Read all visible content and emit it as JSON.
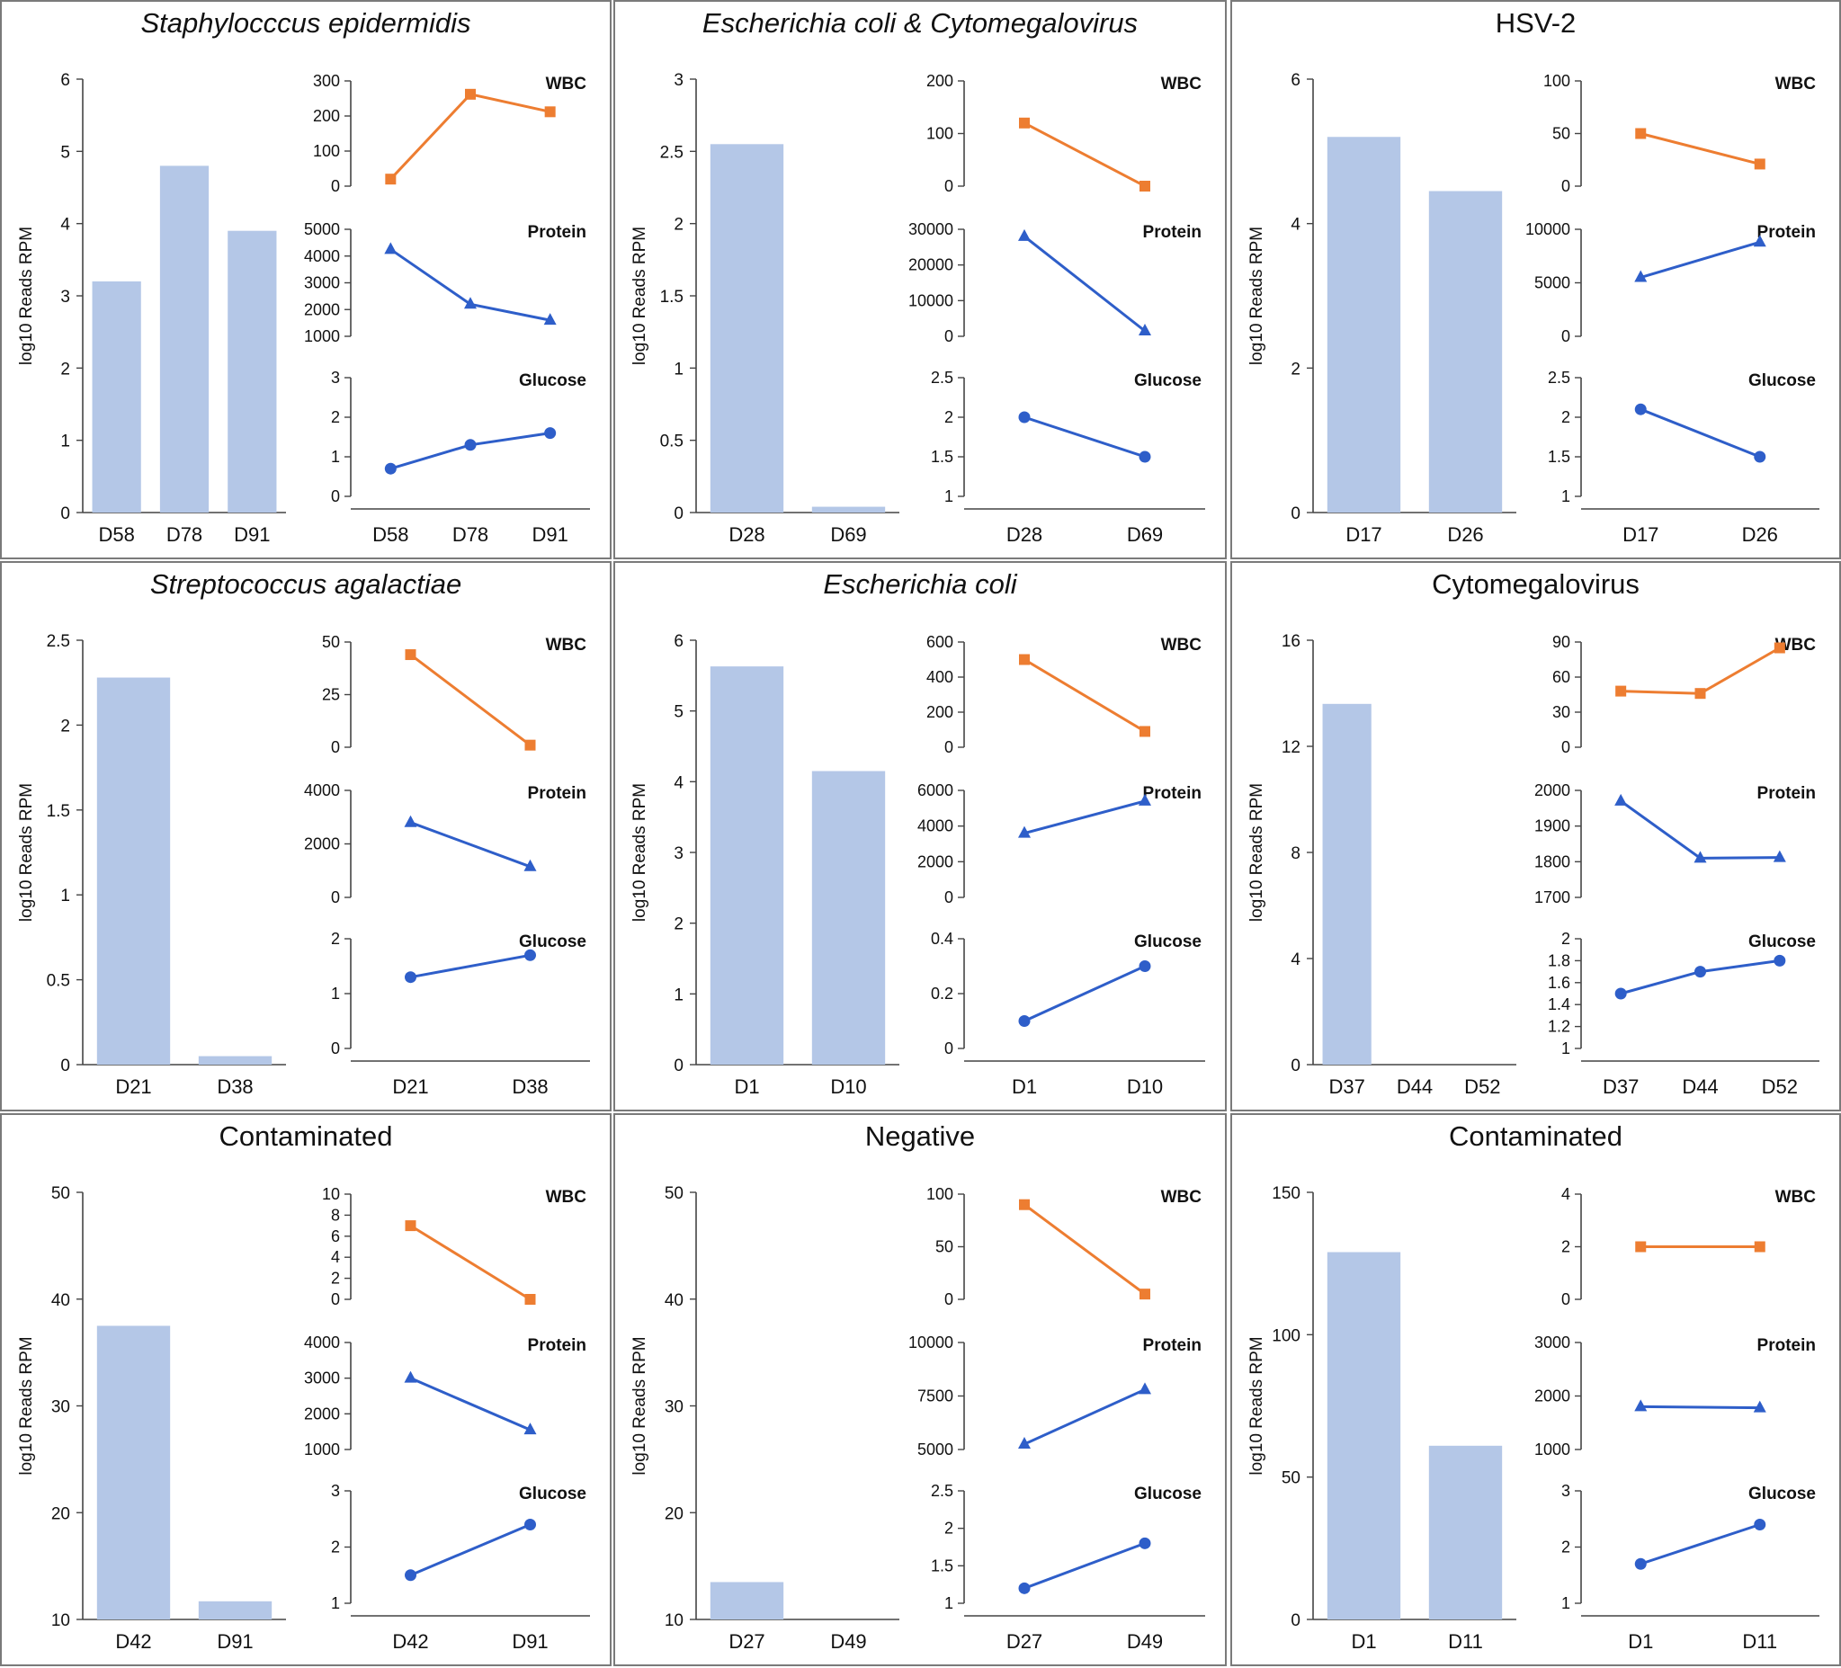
{
  "colors": {
    "bar": "#b4c7e7",
    "wbc": "#ed7d31",
    "blue_series": "#2e5ec9",
    "axis": "#444444"
  },
  "chart_data": [
    {
      "type": "bar+line",
      "title": "Staphylocccus epidermidis",
      "title_italic": true,
      "bar": {
        "categories": [
          "D58",
          "D78",
          "D91"
        ],
        "values": [
          3.2,
          4.8,
          3.9
        ],
        "ylabel": "log10 Reads RPM",
        "ylim": [
          0,
          6
        ],
        "ticks": [
          0,
          1,
          2,
          3,
          4,
          5,
          6
        ]
      },
      "lines": [
        {
          "name": "WBC",
          "color_key": "wbc",
          "marker": "square",
          "values": [
            20,
            262,
            212
          ],
          "ylim": [
            0,
            300
          ],
          "ticks": [
            0,
            100,
            200,
            300
          ]
        },
        {
          "name": "Protein",
          "color_key": "blue_series",
          "marker": "triangle",
          "values": [
            4250,
            2200,
            1600
          ],
          "ylim": [
            1000,
            5000
          ],
          "ticks": [
            1000,
            2000,
            3000,
            4000,
            5000
          ]
        },
        {
          "name": "Glucose",
          "color_key": "blue_series",
          "marker": "circle",
          "values": [
            0.7,
            1.3,
            1.6
          ],
          "ylim": [
            0,
            3
          ],
          "ticks": [
            0,
            1,
            2,
            3
          ]
        }
      ],
      "line_categories": [
        "D58",
        "D78",
        "D91"
      ]
    },
    {
      "type": "bar+line",
      "title": "Escherichia coli & Cytomegalovirus",
      "title_italic": true,
      "bar": {
        "categories": [
          "D28",
          "D69"
        ],
        "values": [
          2.55,
          0.04
        ],
        "ylabel": "log10 Reads RPM",
        "ylim": [
          0,
          3
        ],
        "ticks": [
          0,
          0.5,
          1,
          1.5,
          2,
          2.5,
          3
        ]
      },
      "lines": [
        {
          "name": "WBC",
          "color_key": "wbc",
          "marker": "square",
          "values": [
            120,
            0
          ],
          "ylim": [
            0,
            200
          ],
          "ticks": [
            0,
            100,
            200
          ]
        },
        {
          "name": "Protein",
          "color_key": "blue_series",
          "marker": "triangle",
          "values": [
            28000,
            1500
          ],
          "ylim": [
            0,
            30000
          ],
          "ticks": [
            0,
            10000,
            20000,
            30000
          ]
        },
        {
          "name": "Glucose",
          "color_key": "blue_series",
          "marker": "circle",
          "values": [
            2,
            1.5
          ],
          "ylim": [
            1,
            2.5
          ],
          "ticks": [
            1,
            1.5,
            2,
            2.5
          ]
        }
      ],
      "line_categories": [
        "D28",
        "D69"
      ]
    },
    {
      "type": "bar+line",
      "title": "HSV-2",
      "title_italic": false,
      "bar": {
        "categories": [
          "D17",
          "D26"
        ],
        "values": [
          5.2,
          4.45
        ],
        "ylabel": "log10 Reads RPM",
        "ylim": [
          0,
          6
        ],
        "ticks": [
          0,
          2,
          4,
          6
        ]
      },
      "lines": [
        {
          "name": "WBC",
          "color_key": "wbc",
          "marker": "square",
          "values": [
            50,
            21
          ],
          "ylim": [
            0,
            100
          ],
          "ticks": [
            0,
            50,
            100
          ]
        },
        {
          "name": "Protein",
          "color_key": "blue_series",
          "marker": "triangle",
          "values": [
            5500,
            8800
          ],
          "ylim": [
            0,
            10000
          ],
          "ticks": [
            0,
            5000,
            10000
          ]
        },
        {
          "name": "Glucose",
          "color_key": "blue_series",
          "marker": "circle",
          "values": [
            2.1,
            1.5
          ],
          "ylim": [
            1,
            2.5
          ],
          "ticks": [
            1,
            1.5,
            2,
            2.5
          ]
        }
      ],
      "line_categories": [
        "D17",
        "D26"
      ]
    },
    {
      "type": "bar+line",
      "title": "Streptococcus agalactiae",
      "title_italic": true,
      "bar": {
        "categories": [
          "D21",
          "D38"
        ],
        "values": [
          2.28,
          0.05
        ],
        "ylabel": "log10 Reads RPM",
        "ylim": [
          0,
          2.5
        ],
        "ticks": [
          0,
          0.5,
          1,
          1.5,
          2,
          2.5
        ]
      },
      "lines": [
        {
          "name": "WBC",
          "color_key": "wbc",
          "marker": "square",
          "values": [
            44,
            1
          ],
          "ylim": [
            0,
            50
          ],
          "ticks": [
            0,
            25,
            50
          ]
        },
        {
          "name": "Protein",
          "color_key": "blue_series",
          "marker": "triangle",
          "values": [
            2800,
            1150
          ],
          "ylim": [
            0,
            4000
          ],
          "ticks": [
            0,
            2000,
            4000
          ]
        },
        {
          "name": "Glucose",
          "color_key": "blue_series",
          "marker": "circle",
          "values": [
            1.3,
            1.7
          ],
          "ylim": [
            0,
            2
          ],
          "ticks": [
            0,
            1,
            2
          ]
        }
      ],
      "line_categories": [
        "D21",
        "D38"
      ]
    },
    {
      "type": "bar+line",
      "title": "Escherichia coli",
      "title_italic": true,
      "bar": {
        "categories": [
          "D1",
          "D10"
        ],
        "values": [
          5.63,
          4.15
        ],
        "ylabel": "log10 Reads RPM",
        "ylim": [
          0,
          6
        ],
        "ticks": [
          0,
          1,
          2,
          3,
          4,
          5,
          6
        ]
      },
      "lines": [
        {
          "name": "WBC",
          "color_key": "wbc",
          "marker": "square",
          "values": [
            500,
            90
          ],
          "ylim": [
            0,
            600
          ],
          "ticks": [
            0,
            200,
            400,
            600
          ]
        },
        {
          "name": "Protein",
          "color_key": "blue_series",
          "marker": "triangle",
          "values": [
            3600,
            5400
          ],
          "ylim": [
            0,
            6000
          ],
          "ticks": [
            0,
            2000,
            4000,
            6000
          ]
        },
        {
          "name": "Glucose",
          "color_key": "blue_series",
          "marker": "circle",
          "values": [
            0.1,
            0.3
          ],
          "ylim": [
            0,
            0.4
          ],
          "ticks": [
            0,
            0.2,
            0.4
          ]
        }
      ],
      "line_categories": [
        "D1",
        "D10"
      ]
    },
    {
      "type": "bar+line",
      "title": "Cytomegalovirus",
      "title_italic": false,
      "bar": {
        "categories": [
          "D37",
          "D44",
          "D52"
        ],
        "values": [
          13.6,
          0,
          0
        ],
        "ylabel": "log10 Reads RPM",
        "ylim": [
          0,
          16
        ],
        "ticks": [
          0,
          4,
          8,
          12,
          16
        ]
      },
      "lines": [
        {
          "name": "WBC",
          "color_key": "wbc",
          "marker": "square",
          "values": [
            48,
            46,
            85
          ],
          "ylim": [
            0,
            90
          ],
          "ticks": [
            0,
            30,
            60,
            90
          ]
        },
        {
          "name": "Protein",
          "color_key": "blue_series",
          "marker": "triangle",
          "values": [
            1970,
            1810,
            1812
          ],
          "ylim": [
            1700,
            2000
          ],
          "ticks": [
            1700,
            1800,
            1900,
            2000
          ]
        },
        {
          "name": "Glucose",
          "color_key": "blue_series",
          "marker": "circle",
          "values": [
            1.5,
            1.7,
            1.8
          ],
          "ylim": [
            1,
            2
          ],
          "ticks": [
            1,
            1.2,
            1.4,
            1.6,
            1.8,
            2
          ]
        }
      ],
      "line_categories": [
        "D37",
        "D44",
        "D52"
      ]
    },
    {
      "type": "bar+line",
      "title": "Contaminated",
      "title_italic": false,
      "bar": {
        "categories": [
          "D42",
          "D91"
        ],
        "values": [
          37.5,
          11.7
        ],
        "ylabel": "log10 Reads RPM",
        "ylim": [
          10,
          50
        ],
        "ticks": [
          10,
          20,
          30,
          40,
          50
        ]
      },
      "lines": [
        {
          "name": "WBC",
          "color_key": "wbc",
          "marker": "square",
          "values": [
            7,
            0
          ],
          "ylim": [
            0,
            10
          ],
          "ticks": [
            0,
            2,
            4,
            6,
            8,
            10
          ]
        },
        {
          "name": "Protein",
          "color_key": "blue_series",
          "marker": "triangle",
          "values": [
            3000,
            1550
          ],
          "ylim": [
            1000,
            4000
          ],
          "ticks": [
            1000,
            2000,
            3000,
            4000
          ]
        },
        {
          "name": "Glucose",
          "color_key": "blue_series",
          "marker": "circle",
          "values": [
            1.5,
            2.4
          ],
          "ylim": [
            1,
            3
          ],
          "ticks": [
            1,
            2,
            3
          ]
        }
      ],
      "line_categories": [
        "D42",
        "D91"
      ]
    },
    {
      "type": "bar+line",
      "title": "Negative",
      "title_italic": false,
      "bar": {
        "categories": [
          "D27",
          "D49"
        ],
        "values": [
          13.5,
          0
        ],
        "ylabel": "log10 Reads RPM",
        "ylim": [
          10,
          50
        ],
        "ticks": [
          10,
          20,
          30,
          40,
          50
        ]
      },
      "lines": [
        {
          "name": "WBC",
          "color_key": "wbc",
          "marker": "square",
          "values": [
            90,
            5
          ],
          "ylim": [
            0,
            100
          ],
          "ticks": [
            0,
            50,
            100
          ]
        },
        {
          "name": "Protein",
          "color_key": "blue_series",
          "marker": "triangle",
          "values": [
            5250,
            7800
          ],
          "ylim": [
            5000,
            10000
          ],
          "ticks": [
            5000,
            7500,
            10000
          ]
        },
        {
          "name": "Glucose",
          "color_key": "blue_series",
          "marker": "circle",
          "values": [
            1.2,
            1.8
          ],
          "ylim": [
            1,
            2.5
          ],
          "ticks": [
            1,
            1.5,
            2,
            2.5
          ]
        }
      ],
      "line_categories": [
        "D27",
        "D49"
      ]
    },
    {
      "type": "bar+line",
      "title": "Contaminated",
      "title_italic": false,
      "bar": {
        "categories": [
          "D1",
          "D11"
        ],
        "values": [
          129,
          61
        ],
        "ylabel": "log10 Reads RPM",
        "ylim": [
          0,
          150
        ],
        "ticks": [
          0,
          50,
          100,
          150
        ]
      },
      "lines": [
        {
          "name": "WBC",
          "color_key": "wbc",
          "marker": "square",
          "values": [
            2,
            2
          ],
          "ylim": [
            0,
            4
          ],
          "ticks": [
            0,
            2,
            4
          ]
        },
        {
          "name": "Protein",
          "color_key": "blue_series",
          "marker": "triangle",
          "values": [
            1800,
            1780
          ],
          "ylim": [
            1000,
            3000
          ],
          "ticks": [
            1000,
            2000,
            3000
          ]
        },
        {
          "name": "Glucose",
          "color_key": "blue_series",
          "marker": "circle",
          "values": [
            1.7,
            2.4
          ],
          "ylim": [
            1,
            3
          ],
          "ticks": [
            1,
            2,
            3
          ]
        }
      ],
      "line_categories": [
        "D1",
        "D11"
      ]
    }
  ]
}
